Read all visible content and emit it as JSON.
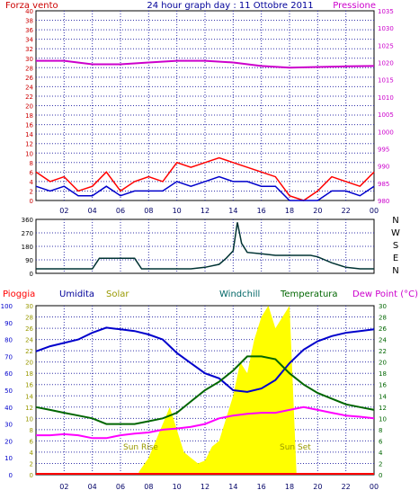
{
  "header": {
    "left_label": "Forza vento",
    "title": "24 hour graph day : 11 Ottobre 2011",
    "right_label": "Pressione"
  },
  "colors": {
    "wind_gust": "#ff0000",
    "wind_avg": "#0000cc",
    "pressure": "#cc00cc",
    "direction": "#003333",
    "humidity": "#0000cc",
    "temperature": "#006600",
    "dew_point": "#ff00ff",
    "solar": "#ffff00",
    "rain": "#ff0000",
    "grid": "#3333aa",
    "left_ticks": "#cc0000",
    "right_ticks": "#cc00cc",
    "temp_ticks": "#006600"
  },
  "legend_bottom": {
    "pioggia": "Pioggia",
    "umidita": "Umidita",
    "solar": "Solar",
    "windchill": "Windchill",
    "temperatura": "Temperatura",
    "dew_point": "Dew Point (°C)"
  },
  "compass": [
    "N",
    "W",
    "S",
    "E",
    "N"
  ],
  "annotations": {
    "sun_rise": "Sun Rise",
    "sun_set": "Sun Set"
  },
  "chart_data": [
    {
      "type": "line",
      "name": "wind-pressure",
      "x_ticks": [
        "02",
        "04",
        "06",
        "08",
        "10",
        "12",
        "14",
        "16",
        "18",
        "20",
        "22",
        "00"
      ],
      "y_left_ticks": [
        "0",
        "2",
        "4",
        "6",
        "8",
        "10",
        "12",
        "14",
        "16",
        "18",
        "20",
        "22",
        "24",
        "26",
        "28",
        "30",
        "32",
        "34",
        "36",
        "38",
        "40"
      ],
      "y_right_ticks": [
        "980",
        "985",
        "990",
        "995",
        "1000",
        "1005",
        "1010",
        "1015",
        "1020",
        "1025",
        "1030",
        "1035"
      ],
      "ylim_left": [
        0,
        40
      ],
      "ylim_right": [
        980,
        1035
      ],
      "xlim": [
        0,
        24
      ],
      "series": [
        {
          "x": [
            0,
            1,
            2,
            3,
            4,
            5,
            6,
            7,
            8,
            9,
            10,
            11,
            12,
            13,
            14,
            15,
            16,
            17,
            18,
            19,
            20,
            21,
            22,
            23,
            24
          ],
          "values": [
            6,
            4,
            5,
            2,
            3,
            6,
            2,
            4,
            5,
            4,
            8,
            7,
            8,
            9,
            8,
            7,
            6,
            5,
            1,
            0,
            2,
            5,
            4,
            3,
            6
          ]
        },
        {
          "x": [
            0,
            1,
            2,
            3,
            4,
            5,
            6,
            7,
            8,
            9,
            10,
            11,
            12,
            13,
            14,
            15,
            16,
            17,
            18,
            19,
            20,
            21,
            22,
            23,
            24
          ],
          "values": [
            3,
            2,
            3,
            1,
            1,
            3,
            1,
            2,
            2,
            2,
            4,
            3,
            4,
            5,
            4,
            4,
            3,
            3,
            0,
            0,
            0,
            2,
            2,
            1,
            3
          ]
        },
        {
          "x": [
            0,
            2,
            4,
            6,
            8,
            10,
            12,
            14,
            16,
            18,
            20,
            22,
            24
          ],
          "values": [
            1020.5,
            1020.5,
            1019.5,
            1019.5,
            1020,
            1020.5,
            1020.5,
            1020,
            1019,
            1018.5,
            1018.7,
            1018.9,
            1019
          ]
        }
      ]
    },
    {
      "type": "line",
      "name": "wind-direction",
      "y_ticks": [
        "0",
        "90",
        "180",
        "270",
        "360"
      ],
      "ylim": [
        0,
        360
      ],
      "xlim": [
        0,
        24
      ],
      "series": [
        {
          "x": [
            0,
            1,
            2,
            3,
            4,
            4.5,
            5,
            6,
            7,
            7.5,
            8,
            9,
            10,
            11,
            12,
            13,
            13.5,
            14,
            14.3,
            14.6,
            15,
            16,
            17,
            18,
            19,
            19.5,
            20,
            21,
            22,
            23,
            24
          ],
          "values": [
            30,
            30,
            30,
            30,
            30,
            100,
            100,
            100,
            100,
            30,
            30,
            30,
            30,
            30,
            40,
            60,
            100,
            150,
            340,
            200,
            140,
            130,
            120,
            120,
            120,
            120,
            110,
            70,
            40,
            30,
            30
          ]
        }
      ]
    },
    {
      "type": "line",
      "name": "humidity-temperature",
      "y_left_ticks": [
        "0",
        "10",
        "20",
        "30",
        "40",
        "50",
        "60",
        "70",
        "80",
        "90",
        "100"
      ],
      "y_mid_ticks": [
        "0",
        "2",
        "4",
        "6",
        "8",
        "10",
        "12",
        "14",
        "16",
        "18",
        "20",
        "22",
        "24",
        "26",
        "28",
        "30"
      ],
      "y_right_ticks": [
        "0",
        "2",
        "4",
        "6",
        "8",
        "10",
        "12",
        "14",
        "16",
        "18",
        "20",
        "22",
        "24",
        "26",
        "28",
        "30"
      ],
      "ylim_left": [
        0,
        100
      ],
      "ylim_temp": [
        0,
        30
      ],
      "xlim": [
        0,
        24
      ],
      "series": [
        {
          "x": [
            0,
            1,
            2,
            3,
            4,
            5,
            6,
            7,
            8,
            9,
            10,
            11,
            12,
            13,
            14,
            15,
            16,
            17,
            18,
            19,
            20,
            21,
            22,
            23,
            24
          ],
          "values": [
            73,
            76,
            78,
            80,
            84,
            87,
            86,
            85,
            83,
            80,
            72,
            66,
            60,
            57,
            50,
            49,
            51,
            56,
            66,
            74,
            79,
            82,
            84,
            85,
            86
          ]
        },
        {
          "x": [
            0,
            1,
            2,
            3,
            4,
            5,
            6,
            7,
            8,
            9,
            10,
            11,
            12,
            13,
            14,
            15,
            16,
            17,
            18,
            19,
            20,
            21,
            22,
            23,
            24
          ],
          "values": [
            12,
            11.5,
            11,
            10.5,
            10,
            9,
            9,
            9,
            9.5,
            10,
            11,
            13,
            15,
            16.5,
            18.5,
            21,
            21,
            20.5,
            18,
            16,
            14.5,
            13.5,
            12.5,
            12,
            11.5
          ]
        },
        {
          "x": [
            0,
            1,
            2,
            3,
            4,
            5,
            6,
            7,
            8,
            9,
            10,
            11,
            12,
            13,
            14,
            15,
            16,
            17,
            18,
            19,
            20,
            21,
            22,
            23,
            24
          ],
          "values": [
            7,
            7,
            7.2,
            7,
            6.5,
            6.5,
            7,
            7.3,
            7.5,
            8,
            8.2,
            8.5,
            9,
            10,
            10.5,
            10.8,
            11,
            11,
            11.5,
            12,
            11.5,
            11,
            10.5,
            10.3,
            10
          ]
        },
        {
          "x": [
            7.3,
            8,
            8.5,
            9,
            9.5,
            10,
            10.5,
            11,
            11.5,
            12,
            12.5,
            13,
            13.5,
            14,
            14.5,
            15,
            15.5,
            16,
            16.5,
            17,
            17.5,
            18,
            18.5
          ],
          "values": [
            0.5,
            3,
            6,
            9,
            12,
            8,
            4,
            3,
            2,
            2.5,
            5,
            6,
            10,
            14,
            20,
            18,
            24,
            28,
            30,
            26,
            28,
            30,
            0
          ]
        }
      ]
    }
  ]
}
